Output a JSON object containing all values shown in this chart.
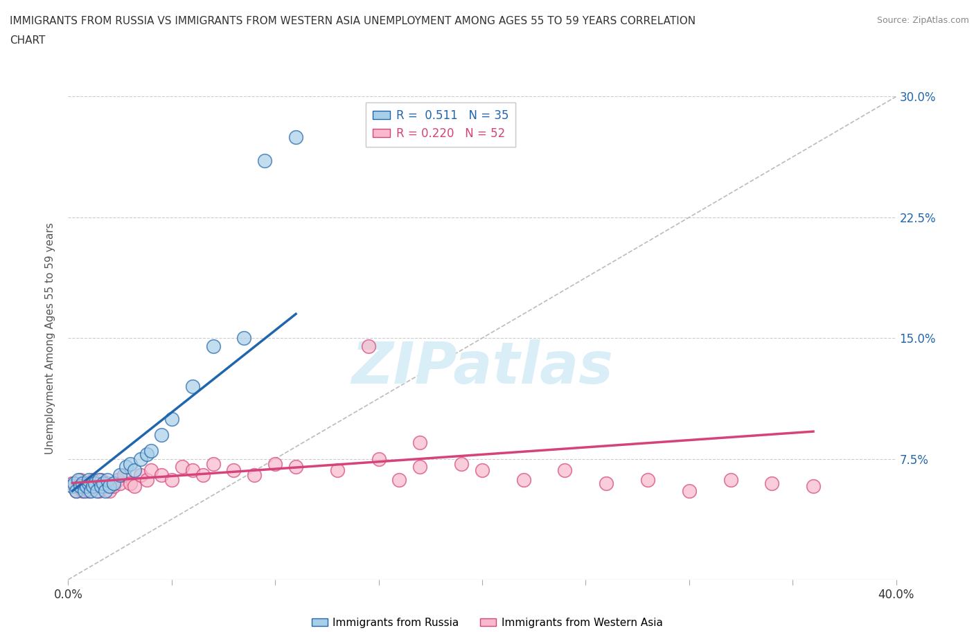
{
  "title_line1": "IMMIGRANTS FROM RUSSIA VS IMMIGRANTS FROM WESTERN ASIA UNEMPLOYMENT AMONG AGES 55 TO 59 YEARS CORRELATION",
  "title_line2": "CHART",
  "source_text": "Source: ZipAtlas.com",
  "r_russia": 0.511,
  "n_russia": 35,
  "r_western_asia": 0.22,
  "n_western_asia": 52,
  "ylabel": "Unemployment Among Ages 55 to 59 years",
  "xlim": [
    0.0,
    0.4
  ],
  "ylim": [
    0.0,
    0.3
  ],
  "xticks": [
    0.0,
    0.05,
    0.1,
    0.15,
    0.2,
    0.25,
    0.3,
    0.35,
    0.4
  ],
  "yticks_right": [
    0.075,
    0.15,
    0.225,
    0.3
  ],
  "ytick_labels_right": [
    "7.5%",
    "15.0%",
    "22.5%",
    "30.0%"
  ],
  "color_russia": "#a8cfe8",
  "color_western_asia": "#f9b8cb",
  "trend_color_russia": "#2166ac",
  "trend_color_western_asia": "#d6437a",
  "watermark_color": "#daeef8",
  "russia_x": [
    0.002,
    0.003,
    0.004,
    0.005,
    0.006,
    0.007,
    0.008,
    0.009,
    0.01,
    0.01,
    0.011,
    0.012,
    0.013,
    0.014,
    0.015,
    0.016,
    0.017,
    0.018,
    0.019,
    0.02,
    0.022,
    0.025,
    0.028,
    0.03,
    0.032,
    0.035,
    0.038,
    0.04,
    0.045,
    0.05,
    0.06,
    0.07,
    0.085,
    0.095,
    0.11
  ],
  "russia_y": [
    0.058,
    0.06,
    0.055,
    0.062,
    0.058,
    0.06,
    0.055,
    0.058,
    0.06,
    0.062,
    0.055,
    0.058,
    0.06,
    0.055,
    0.062,
    0.058,
    0.06,
    0.055,
    0.062,
    0.058,
    0.06,
    0.065,
    0.07,
    0.072,
    0.068,
    0.075,
    0.078,
    0.08,
    0.09,
    0.1,
    0.12,
    0.145,
    0.15,
    0.26,
    0.275
  ],
  "western_asia_x": [
    0.002,
    0.004,
    0.005,
    0.006,
    0.007,
    0.008,
    0.009,
    0.01,
    0.011,
    0.012,
    0.013,
    0.014,
    0.015,
    0.016,
    0.018,
    0.019,
    0.02,
    0.022,
    0.024,
    0.025,
    0.027,
    0.03,
    0.032,
    0.035,
    0.038,
    0.04,
    0.045,
    0.05,
    0.055,
    0.06,
    0.065,
    0.07,
    0.08,
    0.09,
    0.1,
    0.11,
    0.13,
    0.15,
    0.16,
    0.17,
    0.19,
    0.2,
    0.22,
    0.24,
    0.26,
    0.28,
    0.3,
    0.32,
    0.34,
    0.36,
    0.17,
    0.145
  ],
  "western_asia_y": [
    0.06,
    0.055,
    0.058,
    0.062,
    0.055,
    0.06,
    0.058,
    0.055,
    0.06,
    0.062,
    0.058,
    0.06,
    0.055,
    0.062,
    0.058,
    0.06,
    0.055,
    0.058,
    0.062,
    0.06,
    0.065,
    0.06,
    0.058,
    0.065,
    0.062,
    0.068,
    0.065,
    0.062,
    0.07,
    0.068,
    0.065,
    0.072,
    0.068,
    0.065,
    0.072,
    0.07,
    0.068,
    0.075,
    0.062,
    0.07,
    0.072,
    0.068,
    0.062,
    0.068,
    0.06,
    0.062,
    0.055,
    0.062,
    0.06,
    0.058,
    0.085,
    0.145
  ],
  "russia_trend_x": [
    0.002,
    0.11
  ],
  "russia_trend_y": [
    0.055,
    0.165
  ],
  "western_asia_trend_x": [
    0.002,
    0.36
  ],
  "western_asia_trend_y": [
    0.06,
    0.092
  ]
}
